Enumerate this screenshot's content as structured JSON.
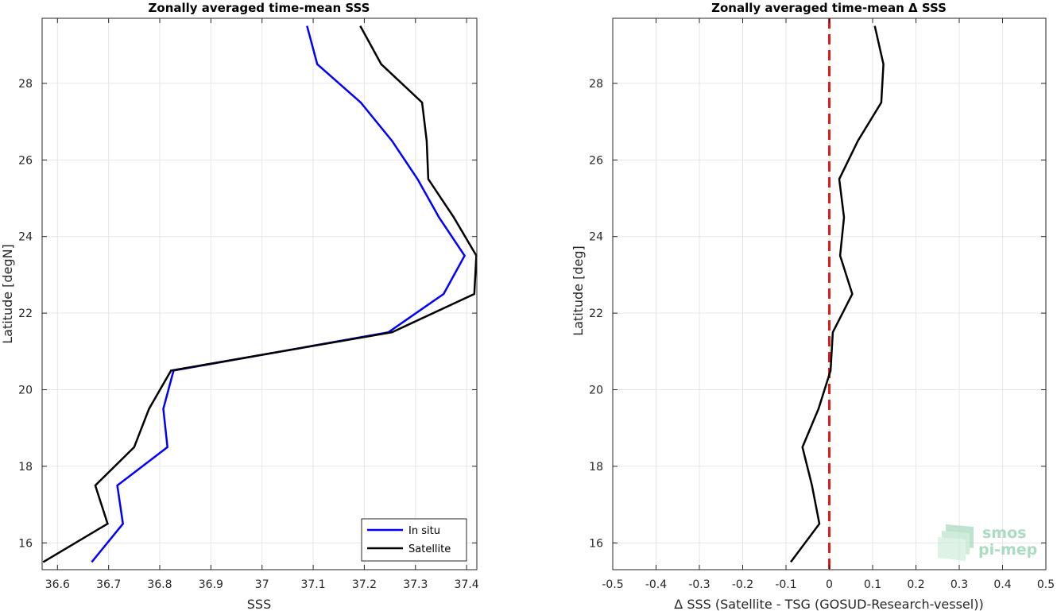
{
  "chart_data": [
    {
      "type": "line",
      "title": "Zonally averaged time-mean SSS",
      "xlabel": "SSS",
      "ylabel": "Latitude [degN]",
      "xlim": [
        36.57,
        37.42
      ],
      "ylim": [
        15.3,
        29.7
      ],
      "xticks": [
        36.6,
        36.7,
        36.8,
        36.9,
        37,
        37.1,
        37.2,
        37.3,
        37.4
      ],
      "xtick_labels": [
        "36.6",
        "36.7",
        "36.8",
        "36.9",
        "37",
        "37.1",
        "37.2",
        "37.3",
        "37.4"
      ],
      "yticks": [
        16,
        18,
        20,
        22,
        24,
        26,
        28
      ],
      "ytick_labels": [
        "16",
        "18",
        "20",
        "22",
        "24",
        "26",
        "28"
      ],
      "grid": true,
      "legend": "bottom-right",
      "series": [
        {
          "name": "In situ",
          "color": "#0000ff",
          "points": [
            [
              36.667,
              15.5
            ],
            [
              36.728,
              16.5
            ],
            [
              36.717,
              17.5
            ],
            [
              36.815,
              18.5
            ],
            [
              36.807,
              19.5
            ],
            [
              36.827,
              20.5
            ],
            [
              37.247,
              21.5
            ],
            [
              37.355,
              22.5
            ],
            [
              37.396,
              23.5
            ],
            [
              37.346,
              24.5
            ],
            [
              37.304,
              25.5
            ],
            [
              37.254,
              26.5
            ],
            [
              37.193,
              27.5
            ],
            [
              37.108,
              28.5
            ],
            [
              37.088,
              29.5
            ]
          ]
        },
        {
          "name": "Satellite",
          "color": "#000000",
          "points": [
            [
              36.572,
              15.5
            ],
            [
              36.698,
              16.5
            ],
            [
              36.674,
              17.5
            ],
            [
              36.75,
              18.5
            ],
            [
              36.779,
              19.5
            ],
            [
              36.822,
              20.5
            ],
            [
              37.254,
              21.5
            ],
            [
              37.415,
              22.5
            ],
            [
              37.419,
              23.5
            ],
            [
              37.375,
              24.5
            ],
            [
              37.325,
              25.5
            ],
            [
              37.322,
              26.5
            ],
            [
              37.313,
              27.5
            ],
            [
              37.233,
              28.5
            ],
            [
              37.192,
              29.5
            ]
          ]
        }
      ]
    },
    {
      "type": "line",
      "title": "Zonally averaged time-mean Δ SSS",
      "xlabel": "Δ SSS (Satellite - TSG (GOSUD-Research-vessel))",
      "ylabel": "Latitude [deg]",
      "xlim": [
        -0.5,
        0.5
      ],
      "ylim": [
        15.3,
        29.7
      ],
      "xticks": [
        -0.5,
        -0.4,
        -0.3,
        -0.2,
        -0.1,
        0,
        0.1,
        0.2,
        0.3,
        0.4,
        0.5
      ],
      "xtick_labels": [
        "-0.5",
        "-0.4",
        "-0.3",
        "-0.2",
        "-0.1",
        "0",
        "0.1",
        "0.2",
        "0.3",
        "0.4",
        "0.5"
      ],
      "yticks": [
        16,
        18,
        20,
        22,
        24,
        26,
        28
      ],
      "ytick_labels": [
        "16",
        "18",
        "20",
        "22",
        "24",
        "26",
        "28"
      ],
      "grid": true,
      "reference_line": {
        "x": 0,
        "color": "#e31a1c",
        "style": "dashed"
      },
      "series": [
        {
          "color": "#000000",
          "points": [
            [
              -0.089,
              15.5
            ],
            [
              -0.023,
              16.5
            ],
            [
              -0.04,
              17.5
            ],
            [
              -0.062,
              18.5
            ],
            [
              -0.025,
              19.5
            ],
            [
              0.003,
              20.5
            ],
            [
              0.008,
              21.5
            ],
            [
              0.053,
              22.5
            ],
            [
              0.025,
              23.5
            ],
            [
              0.034,
              24.5
            ],
            [
              0.023,
              25.5
            ],
            [
              0.066,
              26.5
            ],
            [
              0.12,
              27.5
            ],
            [
              0.125,
              28.5
            ],
            [
              0.105,
              29.5
            ]
          ]
        }
      ]
    }
  ],
  "logo": {
    "line1": "smos",
    "line2": "pi-mep"
  }
}
